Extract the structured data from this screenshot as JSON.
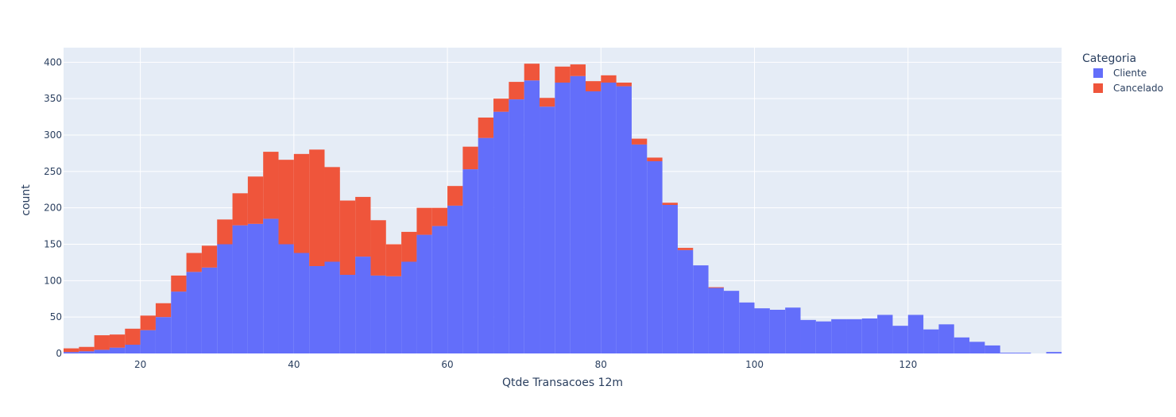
{
  "chart_data": {
    "type": "bar",
    "mode": "stacked-histogram",
    "xlabel": "Qtde Transacoes 12m",
    "ylabel": "count",
    "xlim": [
      10,
      140
    ],
    "ylim": [
      0,
      420
    ],
    "bin_start": 10,
    "bin_width": 2,
    "x_ticks": [
      20,
      40,
      60,
      80,
      100,
      120
    ],
    "y_ticks": [
      0,
      50,
      100,
      150,
      200,
      250,
      300,
      350,
      400
    ],
    "grid": true,
    "legend_title": "Categoria",
    "legend_position": "top-right",
    "series": [
      {
        "name": "Cliente",
        "color": "#636efa",
        "values": [
          2,
          3,
          5,
          8,
          12,
          32,
          50,
          85,
          112,
          118,
          150,
          176,
          178,
          185,
          150,
          138,
          120,
          126,
          108,
          133,
          107,
          106,
          126,
          163,
          175,
          203,
          253,
          296,
          332,
          349,
          375,
          339,
          372,
          381,
          360,
          372,
          367,
          287,
          264,
          204,
          142,
          121,
          90,
          86,
          70,
          62,
          60,
          63,
          46,
          44,
          47,
          47,
          48,
          53,
          38,
          53,
          33,
          40,
          22,
          16,
          11,
          1,
          1,
          0,
          2
        ]
      },
      {
        "name": "Cancelado",
        "color": "#ef553b",
        "values": [
          5,
          6,
          20,
          18,
          22,
          20,
          19,
          22,
          26,
          30,
          34,
          44,
          65,
          92,
          116,
          136,
          160,
          130,
          102,
          82,
          76,
          44,
          41,
          37,
          25,
          27,
          31,
          28,
          18,
          24,
          23,
          12,
          22,
          16,
          14,
          10,
          5,
          8,
          5,
          3,
          3,
          0,
          1,
          0,
          0,
          0,
          0,
          0,
          0,
          0,
          0,
          0,
          0,
          0,
          0,
          0,
          0,
          0,
          0,
          0,
          0,
          0,
          0,
          0,
          0
        ]
      }
    ]
  }
}
